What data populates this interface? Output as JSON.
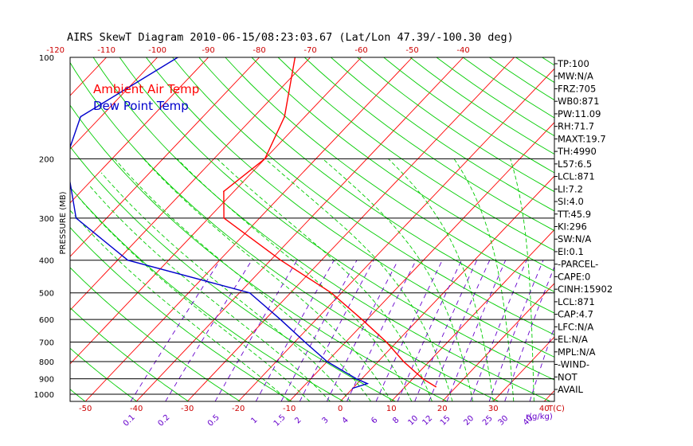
{
  "chart_data": {
    "type": "line",
    "title": "AIRS SkewT Diagram 2010-06-15/08:23:03.67 (Lat/Lon 47.39/-100.30 deg)",
    "ylabel": "PRESSURE (MB)",
    "xlabel": "T(C)",
    "mixing_ratio_unit_label": "r(g/kg)",
    "y_scale": "log",
    "ylim": [
      1050,
      100
    ],
    "xlim_bottom": [
      -53,
      42
    ],
    "pressure_ticks": [
      100,
      200,
      300,
      400,
      500,
      600,
      700,
      800,
      900,
      1000
    ],
    "temp_ticks_bottom": [
      -50,
      -40,
      -30,
      -20,
      -10,
      0,
      10,
      20,
      30,
      40
    ],
    "temp_ticks_top": [
      -120,
      -110,
      -100,
      -90,
      -80,
      -70,
      -60,
      -50,
      -40
    ],
    "mixing_ratio_ticks": [
      "0.1",
      "0.2",
      "0.5",
      "1",
      "1.5",
      "2",
      "3",
      "4",
      "6",
      "8",
      "10",
      "12",
      "15",
      "20",
      "25",
      "30",
      "40"
    ],
    "grid": true,
    "legend_placement": "top-left",
    "series": [
      {
        "name": "Ambient Air Temp",
        "color": "#ff0000",
        "points": [
          {
            "p": 100,
            "t": -73
          },
          {
            "p": 150,
            "t": -64
          },
          {
            "p": 200,
            "t": -60
          },
          {
            "p": 250,
            "t": -62
          },
          {
            "p": 300,
            "t": -57
          },
          {
            "p": 400,
            "t": -38
          },
          {
            "p": 500,
            "t": -22
          },
          {
            "p": 600,
            "t": -11
          },
          {
            "p": 700,
            "t": -2
          },
          {
            "p": 800,
            "t": 5
          },
          {
            "p": 900,
            "t": 12
          },
          {
            "p": 950,
            "t": 16
          }
        ]
      },
      {
        "name": "Dew Point Temp",
        "color": "#0000cc",
        "points": [
          {
            "p": 100,
            "t": -96
          },
          {
            "p": 150,
            "t": -104
          },
          {
            "p": 200,
            "t": -99
          },
          {
            "p": 300,
            "t": -86
          },
          {
            "p": 400,
            "t": -68
          },
          {
            "p": 500,
            "t": -38
          },
          {
            "p": 600,
            "t": -27
          },
          {
            "p": 700,
            "t": -18
          },
          {
            "p": 800,
            "t": -10
          },
          {
            "p": 900,
            "t": -1
          },
          {
            "p": 930,
            "t": 2
          },
          {
            "p": 960,
            "t": 0
          }
        ]
      }
    ],
    "indices": [
      "TP:100",
      "MW:N/A",
      "FRZ:705",
      "WB0:871",
      "PW:11.09",
      "RH:71.7",
      "MAXT:19.7",
      "TH:4990",
      "L57:6.5",
      "LCL:871",
      "LI:7.2",
      "SI:4.0",
      "TT:45.9",
      "KI:296",
      "SW:N/A",
      "EI:0.1",
      "-PARCEL-",
      "CAPE:0",
      "CINH:15902",
      "LCL:871",
      "CAP:4.7",
      "LFC:N/A",
      "EL:N/A",
      "MPL:N/A",
      "-WIND-",
      "NOT",
      "AVAIL"
    ],
    "colors": {
      "isotherm": "#ff0000",
      "dry_adiabat": "#00cc00",
      "moist_adiabat": "#00cc00",
      "mixing_ratio": "#6600cc",
      "isobar": "#000000",
      "axis_text": "#cc0000"
    }
  }
}
